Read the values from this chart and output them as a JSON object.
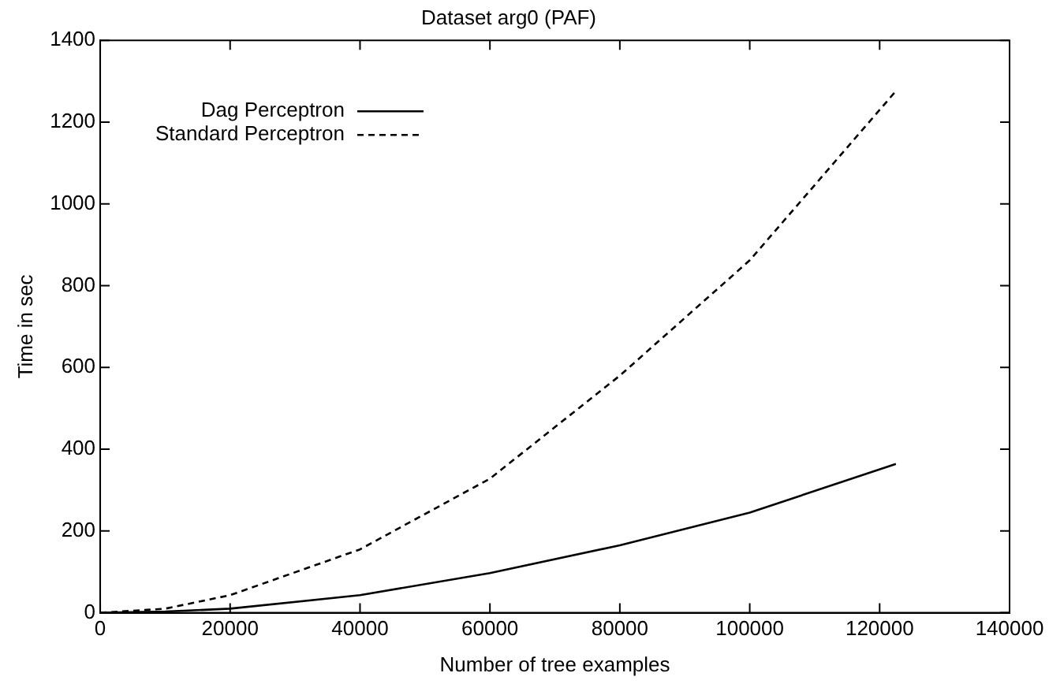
{
  "chart_data": {
    "type": "line",
    "title": "Dataset arg0 (PAF)",
    "xlabel": "Number of tree examples",
    "ylabel": "Time in sec",
    "xlim": [
      0,
      140000
    ],
    "xticks": [
      0,
      20000,
      40000,
      60000,
      80000,
      100000,
      120000,
      140000
    ],
    "ylim": [
      0,
      1400
    ],
    "yticks": [
      0,
      200,
      400,
      600,
      800,
      1000,
      1200,
      1400
    ],
    "grid": false,
    "legend": "top left",
    "marker": "none",
    "series": [
      {
        "name": "Dag Perceptron",
        "color": "#000000",
        "line_style": "solid",
        "x": [
          0,
          10000,
          20000,
          40000,
          60000,
          80000,
          100000,
          122500
        ],
        "values": [
          0,
          3,
          10,
          43,
          97,
          165,
          245,
          364
        ]
      },
      {
        "name": "Standard Perceptron",
        "color": "#000000",
        "line_style": "dashed",
        "x": [
          0,
          10000,
          20000,
          40000,
          60000,
          80000,
          100000,
          122500
        ],
        "values": [
          0,
          10,
          43,
          155,
          328,
          580,
          862,
          1276
        ]
      }
    ]
  }
}
